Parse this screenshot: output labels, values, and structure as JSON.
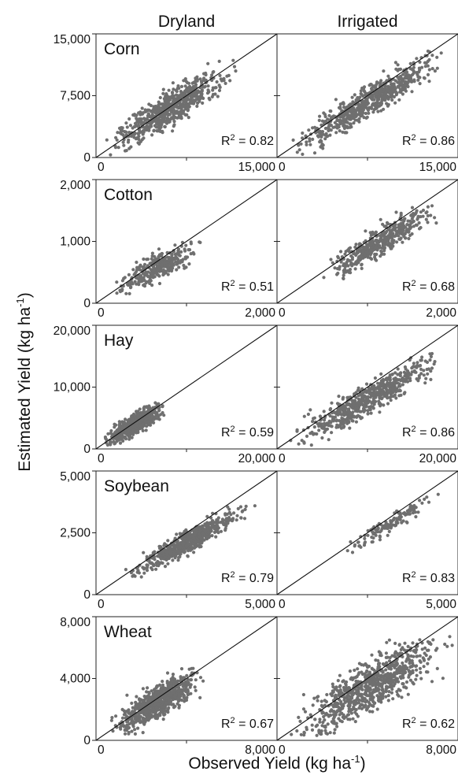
{
  "chart_data": {
    "type": "scatter",
    "columns": [
      "Dryland",
      "Irrigated"
    ],
    "xlabel": "Observed Yield (kg ha",
    "xlabel_sup": "-1",
    "xlabel_end": ")",
    "ylabel": "Estimated Yield (kg ha",
    "ylabel_sup": "-1",
    "ylabel_end": ")",
    "r2_label": "R",
    "r2_sup": "2",
    "reference_line": "1:1",
    "marker_color": "#6f6f6f",
    "panels": [
      {
        "crop": "Corn",
        "range": [
          0,
          15000
        ],
        "y_ticks": [
          "0",
          "7,500",
          "15,000"
        ],
        "y_tick_values": [
          0,
          7500,
          15000
        ],
        "x_tick_left": "0",
        "x_tick_right": "15,000",
        "dryland": {
          "r2": "0.82",
          "x_range": [
            300,
            12000
          ],
          "y_range": [
            200,
            11800
          ],
          "slope": 0.85,
          "spread": 1500,
          "count": 650
        },
        "irrigated": {
          "r2": "0.86",
          "x_range": [
            300,
            15000
          ],
          "y_range": [
            200,
            13500
          ],
          "slope": 0.9,
          "spread": 1300,
          "count": 650
        }
      },
      {
        "crop": "Cotton",
        "range": [
          0,
          2000
        ],
        "y_ticks": [
          "0",
          "1,000",
          "2,000"
        ],
        "y_tick_values": [
          0,
          1000,
          2000
        ],
        "x_tick_left": "0",
        "x_tick_right": "2,000",
        "dryland": {
          "r2": "0.51",
          "x_range": [
            150,
            1200
          ],
          "y_range": [
            150,
            1000
          ],
          "slope": 0.72,
          "spread": 150,
          "count": 320
        },
        "irrigated": {
          "r2": "0.68",
          "x_range": [
            400,
            1900
          ],
          "y_range": [
            300,
            1700
          ],
          "slope": 0.86,
          "spread": 170,
          "count": 420
        }
      },
      {
        "crop": "Hay",
        "range": [
          0,
          20000
        ],
        "y_ticks": [
          "0",
          "10,000",
          "20,000"
        ],
        "y_tick_values": [
          0,
          10000,
          20000
        ],
        "x_tick_left": "0",
        "x_tick_right": "20,000",
        "dryland": {
          "r2": "0.59",
          "x_range": [
            500,
            8000
          ],
          "y_range": [
            500,
            7500
          ],
          "slope": 0.8,
          "spread": 1100,
          "count": 600
        },
        "irrigated": {
          "r2": "0.86",
          "x_range": [
            1000,
            19000
          ],
          "y_range": [
            500,
            15500
          ],
          "slope": 0.8,
          "spread": 1700,
          "count": 600
        }
      },
      {
        "crop": "Soybean",
        "range": [
          0,
          5000
        ],
        "y_ticks": [
          "0",
          "2,500",
          "5,000"
        ],
        "y_tick_values": [
          0,
          2500,
          5000
        ],
        "x_tick_left": "0",
        "x_tick_right": "5,000",
        "dryland": {
          "r2": "0.79",
          "x_range": [
            700,
            4400
          ],
          "y_range": [
            700,
            3600
          ],
          "slope": 0.8,
          "spread": 300,
          "count": 600
        },
        "irrigated": {
          "r2": "0.83",
          "x_range": [
            1700,
            4500
          ],
          "y_range": [
            1600,
            4100
          ],
          "slope": 0.85,
          "spread": 230,
          "count": 130
        }
      },
      {
        "crop": "Wheat",
        "range": [
          0,
          8000
        ],
        "y_ticks": [
          "0",
          "4,000",
          "8,000"
        ],
        "y_tick_values": [
          0,
          4000,
          8000
        ],
        "x_tick_left": "0",
        "x_tick_right": "8,000",
        "dryland": {
          "r2": "0.67",
          "x_range": [
            400,
            5000
          ],
          "y_range": [
            300,
            4700
          ],
          "slope": 0.82,
          "spread": 700,
          "count": 700
        },
        "irrigated": {
          "r2": "0.62",
          "x_range": [
            400,
            8000
          ],
          "y_range": [
            300,
            6800
          ],
          "slope": 0.8,
          "spread": 1100,
          "count": 800
        }
      }
    ]
  }
}
